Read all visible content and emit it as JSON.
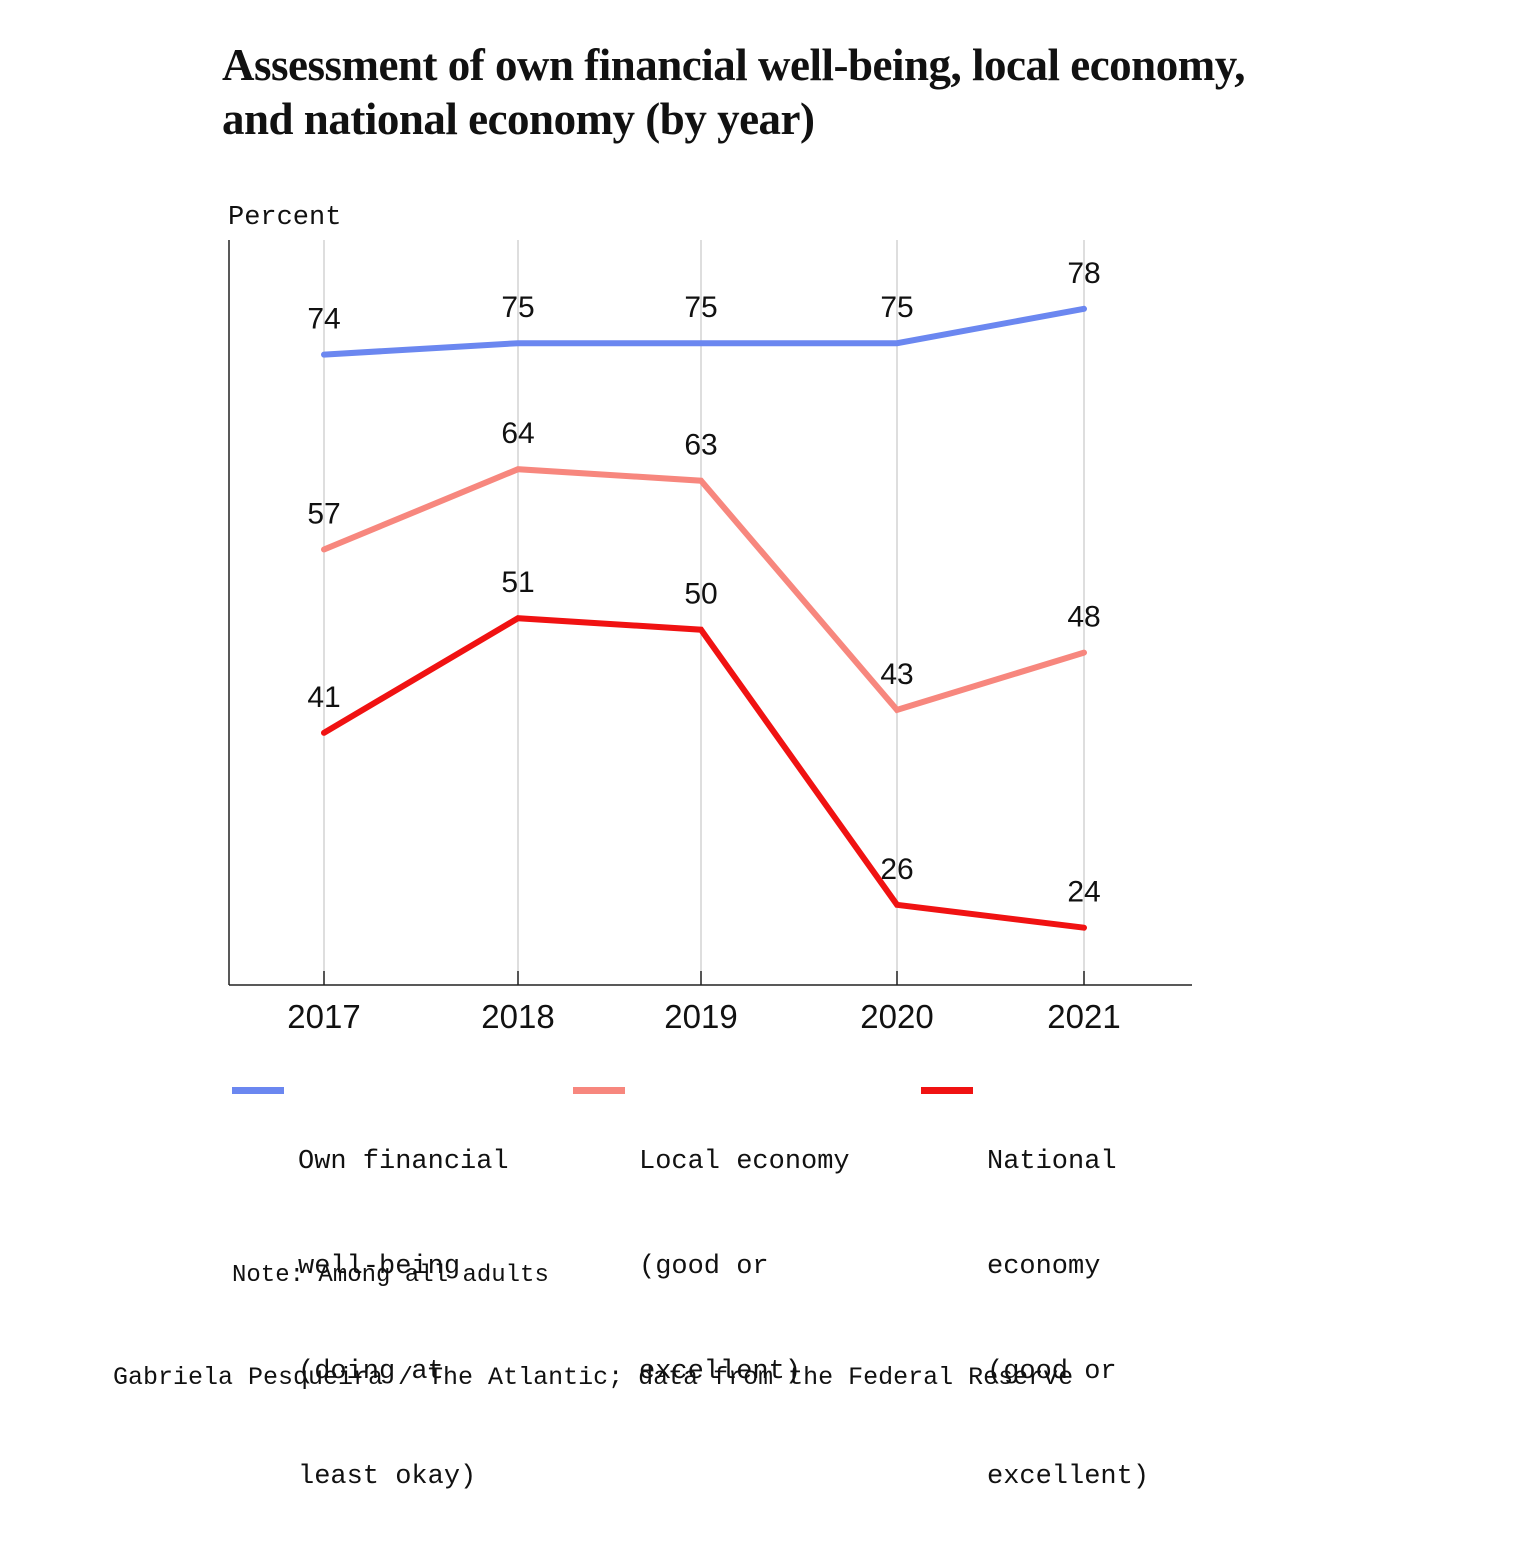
{
  "chart_data": {
    "type": "line",
    "title_lines": [
      "Assessment of own financial well-being, local economy,",
      "and national economy (by year)"
    ],
    "ylabel": "Percent",
    "xlabel": "",
    "categories": [
      "2017",
      "2018",
      "2019",
      "2020",
      "2021"
    ],
    "ylim": [
      19,
      84
    ],
    "grid": "vertical lines at each year",
    "legend_placement": "bottom",
    "series": [
      {
        "name": "Own financial well-being (doing at least okay)",
        "legend_lines": [
          "Own financial",
          "well-being",
          "(doing at",
          "least okay)"
        ],
        "values": [
          74,
          75,
          75,
          75,
          78
        ],
        "labels": [
          "74",
          "75",
          "75",
          "75",
          "78"
        ],
        "color": "#6b87f0"
      },
      {
        "name": "Local economy (good or excellent)",
        "legend_lines": [
          "Local economy",
          "(good or",
          "excellent)"
        ],
        "values": [
          57,
          64,
          63,
          43,
          48
        ],
        "labels": [
          "57",
          "64",
          "63",
          "43",
          "48"
        ],
        "color": "#f7877e"
      },
      {
        "name": "National economy (good or excellent)",
        "legend_lines": [
          "National",
          "economy",
          "(good or",
          "excellent)"
        ],
        "values": [
          41,
          51,
          50,
          26,
          24
        ],
        "labels": [
          "41",
          "51",
          "50",
          "26",
          "24"
        ],
        "color": "#f01212"
      }
    ],
    "note": "Note: Among all adults",
    "credit": "Gabriela Pesqueira / The Atlantic; data from the Federal Reserve"
  }
}
